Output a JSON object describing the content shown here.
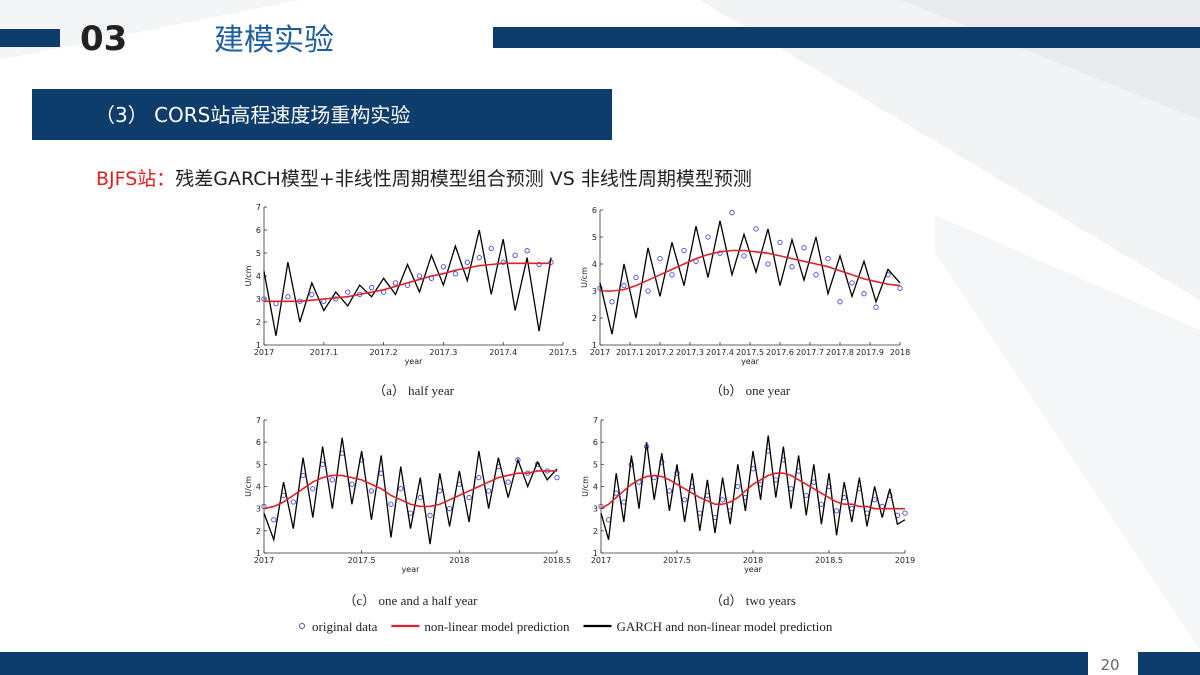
{
  "header": {
    "number": "03",
    "title": "建模实验"
  },
  "section": "（3） CORS站高程速度场重构实验",
  "subtitle": {
    "station": "BJFS站：",
    "text": "残差GARCH模型+非线性周期模型组合预测 VS 非线性周期模型预测"
  },
  "page_number": "20",
  "chart_data": [
    {
      "type": "line",
      "caption": "（a） half year",
      "xlabel": "year",
      "ylabel": "U/cm",
      "xlim": [
        2017,
        2017.5
      ],
      "xticks": [
        2017,
        2017.1,
        2017.2,
        2017.3,
        2017.4,
        2017.5
      ],
      "ylim": [
        1,
        7
      ],
      "yticks": [
        1,
        2,
        3,
        4,
        5,
        6,
        7
      ],
      "x": [
        2017,
        2017.02,
        2017.04,
        2017.06,
        2017.08,
        2017.1,
        2017.12,
        2017.14,
        2017.16,
        2017.18,
        2017.2,
        2017.22,
        2017.24,
        2017.26,
        2017.28,
        2017.3,
        2017.32,
        2017.34,
        2017.36,
        2017.38,
        2017.4,
        2017.42,
        2017.44,
        2017.46,
        2017.48
      ],
      "series": [
        {
          "name": "original data",
          "color": "#4b4bd8",
          "marker": "circle",
          "values": [
            3.0,
            2.8,
            3.1,
            2.9,
            3.2,
            2.9,
            3.0,
            3.3,
            3.2,
            3.5,
            3.3,
            3.7,
            3.6,
            4.0,
            3.9,
            4.4,
            4.1,
            4.6,
            4.8,
            5.2,
            4.6,
            4.9,
            5.1,
            4.5,
            4.6
          ]
        },
        {
          "name": "non-linear model prediction",
          "color": "#e0202a",
          "values": [
            2.9,
            2.9,
            2.9,
            2.9,
            2.95,
            3.0,
            3.05,
            3.1,
            3.2,
            3.3,
            3.4,
            3.55,
            3.7,
            3.85,
            4.0,
            4.1,
            4.25,
            4.35,
            4.45,
            4.5,
            4.55,
            4.55,
            4.55,
            4.55,
            4.55
          ]
        },
        {
          "name": "GARCH and non-linear model prediction",
          "color": "#000000",
          "values": [
            4.2,
            1.4,
            4.6,
            2.0,
            3.7,
            2.5,
            3.3,
            2.7,
            3.6,
            3.1,
            3.9,
            3.2,
            4.5,
            3.3,
            4.9,
            3.6,
            5.3,
            3.8,
            6.0,
            3.2,
            5.6,
            2.5,
            4.8,
            1.6,
            4.8
          ]
        }
      ]
    },
    {
      "type": "line",
      "caption": "（b） one year",
      "xlabel": "year",
      "ylabel": "U/cm",
      "xlim": [
        2017,
        2018
      ],
      "xticks": [
        2017,
        2017.1,
        2017.2,
        2017.3,
        2017.4,
        2017.5,
        2017.6,
        2017.7,
        2017.8,
        2017.9,
        2018
      ],
      "ylim": [
        1,
        6
      ],
      "yticks": [
        1,
        2,
        3,
        4,
        5,
        6
      ],
      "x": [
        2017,
        2017.04,
        2017.08,
        2017.12,
        2017.16,
        2017.2,
        2017.24,
        2017.28,
        2017.32,
        2017.36,
        2017.4,
        2017.44,
        2017.48,
        2017.52,
        2017.56,
        2017.6,
        2017.64,
        2017.68,
        2017.72,
        2017.76,
        2017.8,
        2017.84,
        2017.88,
        2017.92,
        2017.96,
        2018
      ],
      "series": [
        {
          "name": "original data",
          "color": "#4b4bd8",
          "marker": "circle",
          "values": [
            3.1,
            2.6,
            3.2,
            3.5,
            3.0,
            4.2,
            3.6,
            4.5,
            4.1,
            5.0,
            4.4,
            5.9,
            4.3,
            5.3,
            4.0,
            4.8,
            3.9,
            4.6,
            3.6,
            4.2,
            2.6,
            3.3,
            2.9,
            2.4,
            3.6,
            3.1
          ]
        },
        {
          "name": "non-linear model prediction",
          "color": "#e0202a",
          "values": [
            3.0,
            3.0,
            3.05,
            3.2,
            3.4,
            3.6,
            3.8,
            4.0,
            4.2,
            4.35,
            4.45,
            4.5,
            4.5,
            4.45,
            4.4,
            4.3,
            4.2,
            4.1,
            4.0,
            3.9,
            3.75,
            3.6,
            3.45,
            3.35,
            3.25,
            3.2
          ]
        },
        {
          "name": "GARCH and non-linear model prediction",
          "color": "#000000",
          "values": [
            3.3,
            1.4,
            4.0,
            2.0,
            4.6,
            2.8,
            4.8,
            3.2,
            5.4,
            3.5,
            5.6,
            3.6,
            5.1,
            3.7,
            5.3,
            3.2,
            4.9,
            3.4,
            5.0,
            2.9,
            4.3,
            2.8,
            4.1,
            2.6,
            3.8,
            3.3
          ]
        }
      ]
    },
    {
      "type": "line",
      "caption": "（c） one and a half year",
      "xlabel": "year",
      "ylabel": "U/cm",
      "xlim": [
        2017,
        2018.5
      ],
      "xticks": [
        2017,
        2017.5,
        2018,
        2018.5
      ],
      "ylim": [
        1,
        7
      ],
      "yticks": [
        1,
        2,
        3,
        4,
        5,
        6,
        7
      ],
      "x": [
        2017,
        2017.05,
        2017.1,
        2017.15,
        2017.2,
        2017.25,
        2017.3,
        2017.35,
        2017.4,
        2017.45,
        2017.5,
        2017.55,
        2017.6,
        2017.65,
        2017.7,
        2017.75,
        2017.8,
        2017.85,
        2017.9,
        2017.95,
        2018,
        2018.05,
        2018.1,
        2018.15,
        2018.2,
        2018.25,
        2018.3,
        2018.35,
        2018.4,
        2018.45,
        2018.5
      ],
      "series": [
        {
          "name": "original data",
          "color": "#4b4bd8",
          "marker": "circle",
          "values": [
            3.1,
            2.5,
            3.6,
            3.3,
            4.5,
            3.9,
            5.0,
            4.3,
            5.5,
            4.1,
            5.2,
            3.8,
            4.6,
            3.2,
            3.9,
            2.8,
            3.5,
            2.7,
            3.8,
            3.0,
            4.1,
            3.5,
            4.4,
            3.8,
            4.9,
            4.2,
            5.2,
            4.6,
            5.0,
            4.7,
            4.4
          ]
        },
        {
          "name": "non-linear model prediction",
          "color": "#e0202a",
          "values": [
            3.0,
            3.1,
            3.3,
            3.6,
            3.9,
            4.2,
            4.4,
            4.5,
            4.5,
            4.4,
            4.3,
            4.1,
            3.9,
            3.6,
            3.4,
            3.2,
            3.1,
            3.1,
            3.2,
            3.4,
            3.6,
            3.8,
            4.0,
            4.2,
            4.4,
            4.5,
            4.6,
            4.6,
            4.7,
            4.7,
            4.7
          ]
        },
        {
          "name": "GARCH and non-linear model prediction",
          "color": "#000000",
          "values": [
            2.8,
            1.6,
            4.2,
            2.1,
            5.3,
            2.6,
            5.8,
            3.0,
            6.2,
            3.2,
            5.6,
            2.5,
            5.4,
            1.7,
            4.9,
            2.1,
            4.4,
            1.4,
            4.6,
            2.2,
            4.7,
            2.4,
            5.6,
            3.0,
            5.3,
            3.5,
            5.2,
            4.0,
            5.1,
            4.3,
            4.8
          ]
        }
      ]
    },
    {
      "type": "line",
      "caption": "（d） two years",
      "xlabel": "year",
      "ylabel": "U/cm",
      "xlim": [
        2017,
        2019
      ],
      "xticks": [
        2017,
        2017.5,
        2018,
        2018.5,
        2019
      ],
      "ylim": [
        1,
        7
      ],
      "yticks": [
        1,
        2,
        3,
        4,
        5,
        6,
        7
      ],
      "x": [
        2017,
        2017.05,
        2017.1,
        2017.15,
        2017.2,
        2017.25,
        2017.3,
        2017.35,
        2017.4,
        2017.45,
        2017.5,
        2017.55,
        2017.6,
        2017.65,
        2017.7,
        2017.75,
        2017.8,
        2017.85,
        2017.9,
        2017.95,
        2018,
        2018.05,
        2018.1,
        2018.15,
        2018.2,
        2018.25,
        2018.3,
        2018.35,
        2018.4,
        2018.45,
        2018.5,
        2018.55,
        2018.6,
        2018.65,
        2018.7,
        2018.75,
        2018.8,
        2018.85,
        2018.9,
        2018.95,
        2019
      ],
      "series": [
        {
          "name": "original data",
          "color": "#4b4bd8",
          "marker": "circle",
          "values": [
            3.1,
            2.5,
            3.7,
            3.3,
            5.0,
            4.2,
            5.8,
            4.4,
            5.1,
            3.8,
            4.6,
            3.4,
            4.0,
            2.8,
            3.6,
            2.6,
            3.4,
            2.9,
            4.0,
            3.5,
            4.8,
            4.1,
            5.6,
            4.3,
            5.2,
            3.9,
            4.7,
            3.6,
            4.2,
            3.2,
            4.0,
            2.9,
            3.5,
            3.0,
            3.9,
            2.8,
            3.4,
            3.1,
            3.6,
            2.7,
            2.8
          ]
        },
        {
          "name": "non-linear model prediction",
          "color": "#e0202a",
          "values": [
            3.0,
            3.2,
            3.5,
            3.8,
            4.1,
            4.3,
            4.45,
            4.5,
            4.45,
            4.3,
            4.1,
            3.9,
            3.7,
            3.5,
            3.35,
            3.2,
            3.2,
            3.3,
            3.5,
            3.8,
            4.1,
            4.3,
            4.5,
            4.6,
            4.6,
            4.5,
            4.3,
            4.1,
            3.9,
            3.7,
            3.5,
            3.3,
            3.2,
            3.2,
            3.1,
            3.1,
            3.0,
            3.0,
            3.0,
            3.0,
            3.0
          ]
        },
        {
          "name": "GARCH and non-linear model prediction",
          "color": "#000000",
          "values": [
            2.8,
            1.6,
            4.6,
            2.4,
            5.4,
            3.0,
            6.0,
            3.4,
            5.5,
            2.9,
            5.0,
            2.4,
            4.6,
            2.0,
            4.3,
            1.9,
            4.4,
            2.3,
            5.0,
            2.9,
            5.6,
            3.4,
            6.3,
            3.5,
            5.8,
            3.0,
            5.4,
            2.7,
            5.0,
            2.3,
            4.6,
            1.8,
            4.2,
            2.4,
            4.4,
            2.2,
            4.0,
            2.6,
            3.9,
            2.3,
            2.5
          ]
        }
      ]
    }
  ]
}
